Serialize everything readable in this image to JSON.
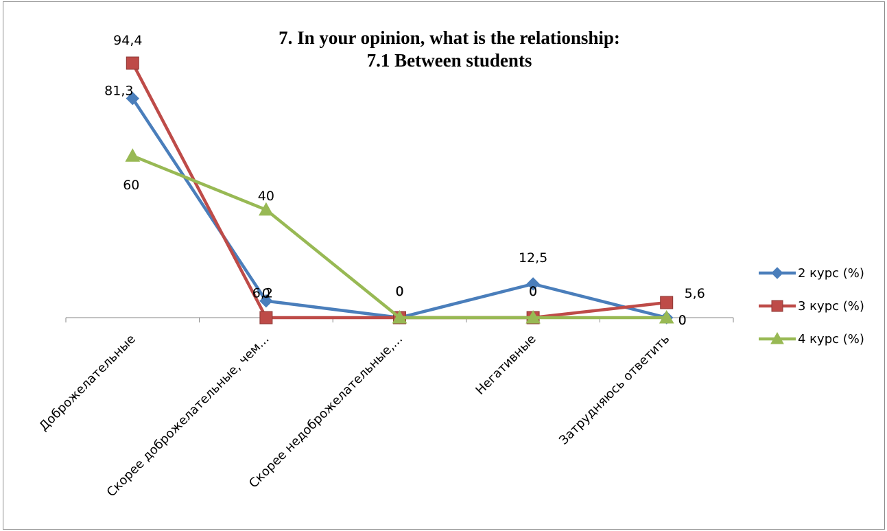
{
  "chart_data": {
    "type": "line",
    "title_lines": [
      "7. In your opinion, what is the relationship:",
      "7.1 Between students"
    ],
    "categories": [
      "Доброжелательные",
      "Скорее доброжелательные, чем...",
      "Скорее недоброжелательные,...",
      "Негативные",
      "Затрудняюсь ответить"
    ],
    "series": [
      {
        "name": "2 курс (%)",
        "values": [
          81.3,
          6.2,
          0,
          12.5,
          0
        ],
        "labels": [
          "81,3",
          "6,2",
          "0",
          "12,5",
          "0"
        ],
        "color": "#4a7ebb",
        "marker": "diamond"
      },
      {
        "name": "3 курс (%)",
        "values": [
          94.4,
          0,
          0,
          0,
          5.6
        ],
        "labels": [
          "94,4",
          "0",
          "0",
          "0",
          "5,6"
        ],
        "color": "#be4b48",
        "marker": "square"
      },
      {
        "name": "4 курс (%)",
        "values": [
          60,
          40,
          0,
          0,
          0
        ],
        "labels": [
          "60",
          "40",
          "0",
          "0",
          "0"
        ],
        "color": "#98b954",
        "marker": "triangle"
      }
    ],
    "ylim": [
      0,
      100
    ],
    "grid": false,
    "legend_position": "right"
  }
}
